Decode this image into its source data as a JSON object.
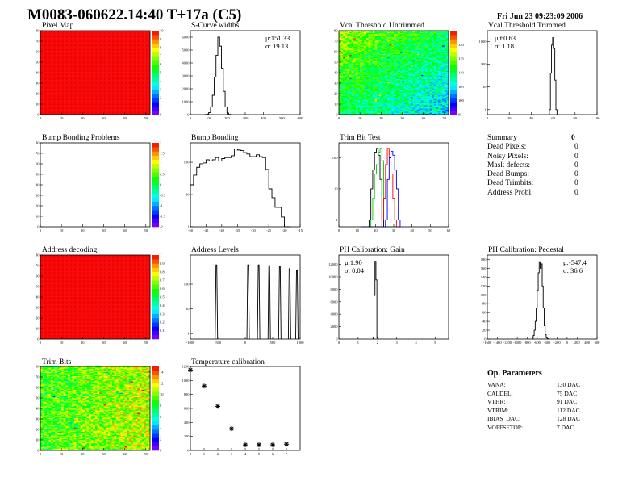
{
  "header": {
    "title": "M0083-060622.14:40 T+17a (C5)",
    "date": "Fri Jun 23 09:23:09 2006"
  },
  "summary": {
    "title": "Summary",
    "total": "0",
    "items": [
      {
        "label": "Dead Pixels:",
        "value": "0"
      },
      {
        "label": "Noisy Pixels:",
        "value": "0"
      },
      {
        "label": "Mask defects:",
        "value": "0"
      },
      {
        "label": "Dead Bumps:",
        "value": "0"
      },
      {
        "label": "Dead Trimbits:",
        "value": "0"
      },
      {
        "label": "Address Probl:",
        "value": "0"
      }
    ]
  },
  "op_parameters": {
    "title": "Op. Parameters",
    "items": [
      {
        "label": "VANA:",
        "value": "130 DAC"
      },
      {
        "label": "CALDEL:",
        "value": "75 DAC"
      },
      {
        "label": "VTHR:",
        "value": "91 DAC"
      },
      {
        "label": "VTRIM:",
        "value": "112 DAC"
      },
      {
        "label": "IBIAS_DAC:",
        "value": "128 DAC"
      },
      {
        "label": "VOFFSETOP:",
        "value": "7 DAC"
      }
    ]
  },
  "colors": {
    "palette": "rainbow violet-to-red",
    "histogram_line": "#000000",
    "trim_series": [
      "#000000",
      "#00cc00",
      "#ff0000",
      "#0000ff"
    ]
  },
  "chart_data": [
    {
      "id": "pixel_map",
      "type": "heatmap",
      "title": "Pixel Map",
      "xlim": [
        0,
        52
      ],
      "ylim": [
        0,
        80
      ],
      "zlim": [
        0,
        10
      ],
      "xticks": [
        0,
        10,
        20,
        30,
        40,
        50
      ],
      "yticks": [
        0,
        10,
        20,
        30,
        40,
        50,
        60,
        70,
        80
      ],
      "zticks": [
        0,
        1,
        2,
        3,
        4,
        5,
        6,
        7,
        8,
        9,
        10
      ],
      "value": 10,
      "spread": 0
    },
    {
      "id": "scurve",
      "type": "hist",
      "title": "S-Curve widths",
      "xlim": [
        0,
        600
      ],
      "ylim": [
        0,
        6500
      ],
      "xticks": [
        0,
        100,
        200,
        300,
        400,
        500,
        600
      ],
      "yticks": [
        0,
        1000,
        2000,
        3000,
        4000,
        5000,
        6000
      ],
      "x": [
        85,
        95,
        105,
        115,
        125,
        135,
        145,
        155,
        165,
        175,
        185,
        195,
        205,
        215
      ],
      "series": [
        {
          "values": [
            10,
            40,
            150,
            600,
            1500,
            2900,
            4600,
            6000,
            5300,
            3600,
            1800,
            600,
            120,
            20
          ]
        }
      ],
      "stats": {
        "mean": "μ:151.33",
        "sigma": "σ: 19.13"
      }
    },
    {
      "id": "vcal_untrimmed",
      "type": "heatmap",
      "title": "Vcal Threshold Untrimmed",
      "xlim": [
        0,
        52
      ],
      "ylim": [
        0,
        80
      ],
      "zlim": [
        95,
        125
      ],
      "xticks": [
        0,
        10,
        20,
        30,
        40,
        50
      ],
      "yticks": [
        0,
        10,
        20,
        30,
        40,
        50,
        60,
        70,
        80
      ],
      "zticks": [
        95,
        100,
        105,
        110,
        115,
        120
      ],
      "value": 110,
      "spread": 4
    },
    {
      "id": "vcal_trimmed",
      "type": "hist",
      "log": true,
      "title": "Vcal Threshold Trimmed",
      "xlim": [
        0,
        100
      ],
      "ylim": [
        0.6,
        3000
      ],
      "xticks": [
        0,
        20,
        40,
        60,
        80,
        100
      ],
      "yticks": [
        1,
        10,
        100,
        1000
      ],
      "x": [
        57,
        58,
        59,
        60,
        61,
        62,
        63
      ],
      "series": [
        {
          "values": [
            1,
            40,
            700,
            1500,
            500,
            20,
            1
          ]
        }
      ],
      "stats": {
        "mean": "μ:60.63",
        "sigma": "σ: 1.18"
      }
    },
    {
      "id": "bump_problems",
      "type": "heatmap",
      "title": "Bump Bonding Problems",
      "xlim": [
        0,
        52
      ],
      "ylim": [
        0,
        80
      ],
      "zlim": [
        -2,
        2
      ],
      "xticks": [
        0,
        10,
        20,
        30,
        40,
        50
      ],
      "yticks": [
        0,
        10,
        20,
        30,
        40,
        50,
        60,
        70,
        80
      ],
      "zticks": [
        -2,
        -1.5,
        -1,
        -0.5,
        0,
        0.5,
        1,
        1.5,
        2
      ],
      "value": null,
      "spread": 0
    },
    {
      "id": "bump_bonding",
      "type": "hist",
      "log": true,
      "title": "Bump Bonding",
      "xlim": [
        -50,
        -15
      ],
      "ylim": [
        1,
        400
      ],
      "xticks": [
        -50,
        -45,
        -40,
        -35,
        -30,
        -25,
        -20,
        -15
      ],
      "yticks": [
        1,
        10,
        100
      ],
      "x": [
        -49.5,
        -48.5,
        -47.5,
        -46.5,
        -45.5,
        -44.5,
        -43.5,
        -42.5,
        -41.5,
        -40.5,
        -39.5,
        -38.5,
        -37.5,
        -36.5,
        -35.5,
        -34.5,
        -33.5,
        -32.5,
        -31.5,
        -30.5,
        -29.5,
        -28.5,
        -27.5,
        -26.5,
        -25.5,
        -24.5,
        -23.5,
        -22.5,
        -21.5,
        -20.5,
        -19.5,
        -18.5
      ],
      "series": [
        {
          "values": [
            20,
            40,
            70,
            90,
            95,
            120,
            110,
            120,
            140,
            110,
            130,
            140,
            140,
            160,
            260,
            240,
            230,
            200,
            180,
            150,
            150,
            170,
            150,
            140,
            60,
            15,
            8,
            4,
            4,
            2,
            1,
            0
          ]
        }
      ]
    },
    {
      "id": "trim_bit_test",
      "type": "hist",
      "log": true,
      "title": "Trim Bit Test",
      "xlim": [
        0,
        60
      ],
      "ylim": [
        0.6,
        300
      ],
      "xticks": [
        0,
        10,
        20,
        30,
        40,
        50,
        60
      ],
      "yticks": [
        1,
        10,
        100
      ],
      "x": [
        13,
        14,
        15,
        16,
        17,
        18,
        19,
        20,
        21,
        22,
        23,
        24,
        25,
        26,
        27,
        28,
        29,
        30,
        31,
        32,
        33
      ],
      "series": [
        {
          "name": "",
          "color": "#000000",
          "values": [
            0,
            0,
            0,
            0,
            1,
            10,
            40,
            150,
            200,
            120,
            20,
            1,
            0,
            0,
            0,
            0,
            0,
            0,
            0,
            0,
            0
          ]
        },
        {
          "name": "",
          "color": "#00cc00",
          "values": [
            0,
            0,
            0,
            0,
            0,
            1,
            5,
            30,
            60,
            150,
            200,
            80,
            1,
            0,
            0,
            0,
            0,
            0,
            0,
            0,
            0
          ]
        },
        {
          "name": "",
          "color": "#ff0000",
          "values": [
            0,
            0,
            0,
            0,
            0,
            0,
            0,
            0,
            0,
            0,
            0,
            1,
            5,
            60,
            200,
            100,
            30,
            5,
            1,
            0,
            0
          ]
        },
        {
          "name": "",
          "color": "#0000ff",
          "values": [
            0,
            0,
            0,
            0,
            0,
            0,
            0,
            0,
            0,
            0,
            0,
            0,
            0,
            1,
            20,
            100,
            160,
            120,
            40,
            10,
            1
          ]
        }
      ]
    },
    {
      "id": "address_decoding",
      "type": "heatmap",
      "title": "Address decoding",
      "xlim": [
        0,
        52
      ],
      "ylim": [
        0,
        80
      ],
      "zlim": [
        0,
        1
      ],
      "xticks": [
        0,
        10,
        20,
        30,
        40,
        50
      ],
      "yticks": [
        0,
        10,
        20,
        30,
        40,
        50,
        60,
        70,
        80
      ],
      "zticks": [
        0.1,
        0.2,
        0.3,
        0.4,
        0.5,
        0.6,
        0.7,
        0.8,
        0.9,
        1
      ],
      "value": 1,
      "spread": 0
    },
    {
      "id": "address_levels",
      "type": "spikes",
      "log": true,
      "title": "Address Levels",
      "xlim": [
        -1000,
        1000
      ],
      "ylim": [
        0.6,
        1500
      ],
      "xticks": [
        -1000,
        -500,
        0,
        500,
        1000
      ],
      "yticks": [
        1,
        10,
        100
      ],
      "x": [
        -526,
        52,
        244,
        437,
        630,
        807,
        941
      ],
      "series": [
        {
          "values": [
            600,
            600,
            600,
            560,
            520,
            420,
            360
          ]
        }
      ]
    },
    {
      "id": "ph_gain",
      "type": "hist",
      "title": "PH Calibration: Gain",
      "xlim": [
        0,
        5.7
      ],
      "ylim": [
        0,
        13500
      ],
      "xticks": [
        0,
        1,
        2,
        3,
        4,
        5
      ],
      "yticks": [
        0,
        2000,
        4000,
        6000,
        8000,
        10000,
        12000
      ],
      "x": [
        1.8,
        1.85,
        1.9,
        1.95,
        2.0,
        2.05
      ],
      "series": [
        {
          "values": [
            300,
            7000,
            12500,
            9500,
            200,
            0
          ]
        }
      ],
      "stats": {
        "mean": "μ:1.90",
        "sigma": "σ: 0.04"
      }
    },
    {
      "id": "ph_pedestal",
      "type": "hist",
      "title": "PH Calibration: Pedestal",
      "xlim": [
        -1600,
        600
      ],
      "ylim": [
        0,
        190
      ],
      "xticks": [
        -1600,
        -1400,
        -1200,
        -1000,
        -800,
        -600,
        -400,
        -200,
        0,
        200,
        400,
        600
      ],
      "yticks": [
        0,
        20,
        40,
        60,
        80,
        100,
        120,
        140,
        160,
        180
      ],
      "x": [
        -690,
        -670,
        -650,
        -630,
        -610,
        -590,
        -570,
        -550,
        -530,
        -510,
        -490,
        -470,
        -450,
        -430,
        -410,
        -390
      ],
      "series": [
        {
          "values": [
            2,
            8,
            20,
            40,
            70,
            110,
            150,
            175,
            160,
            170,
            120,
            70,
            30,
            10,
            3,
            1
          ]
        }
      ],
      "stats": {
        "mean": "μ:-547.4",
        "sigma": "σ: 36.6"
      }
    },
    {
      "id": "trim_bits",
      "type": "heatmap",
      "title": "Trim Bits",
      "xlim": [
        0,
        52
      ],
      "ylim": [
        0,
        80
      ],
      "zlim": [
        0,
        15
      ],
      "xticks": [
        0,
        10,
        20,
        30,
        40,
        50
      ],
      "yticks": [
        0,
        10,
        20,
        30,
        40,
        50,
        60,
        70,
        80
      ],
      "zticks": [
        0,
        2,
        4,
        6,
        8,
        10,
        12,
        14
      ],
      "value": 9,
      "spread": 2.5
    },
    {
      "id": "temperature_calibration",
      "type": "scatter",
      "title": "Temperature calibration",
      "xlim": [
        0,
        8
      ],
      "ylim": [
        0,
        1200
      ],
      "xticks": [
        0,
        1,
        2,
        3,
        4,
        5,
        6,
        7
      ],
      "yticks": [
        0,
        200,
        400,
        600,
        800,
        1000,
        1200
      ],
      "x": [
        0,
        1,
        2,
        3,
        4,
        5,
        6,
        7
      ],
      "series": [
        {
          "values": [
            1150,
            920,
            630,
            310,
            80,
            80,
            80,
            90
          ]
        }
      ]
    }
  ]
}
